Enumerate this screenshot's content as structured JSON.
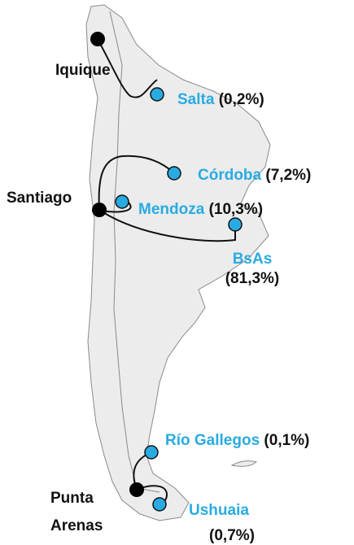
{
  "origins": [
    {
      "lines": [
        "Iquique"
      ]
    },
    {
      "lines": [
        "Santiago"
      ]
    },
    {
      "lines": [
        "Punta",
        "Arenas"
      ]
    }
  ],
  "destinations": [
    {
      "name": "Salta",
      "share": "(0,2%)"
    },
    {
      "name": "Córdoba",
      "share": "(7,2%)"
    },
    {
      "name": "Mendoza",
      "share": "(10,3%)"
    },
    {
      "name": "BsAs",
      "share": "(81,3%)"
    },
    {
      "name": "Río Gallegos",
      "share": "(0,1%)"
    },
    {
      "name": "Ushuaia",
      "share": "(0,7%)"
    }
  ]
}
